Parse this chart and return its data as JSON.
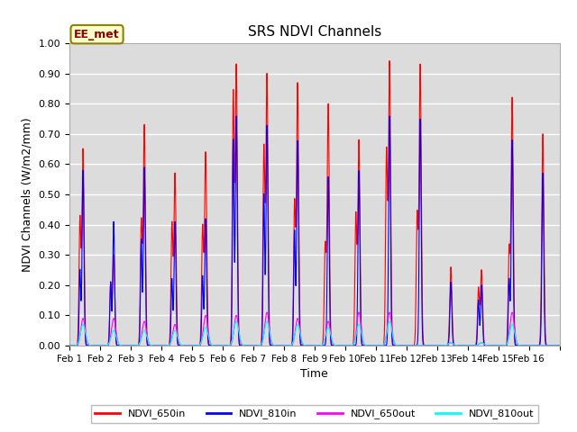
{
  "title": "SRS NDVI Channels",
  "xlabel": "Time",
  "ylabel": "NDVI Channels (W/m2/mm)",
  "annotation": "EE_met",
  "ylim": [
    0.0,
    1.0
  ],
  "yticks": [
    0.0,
    0.1,
    0.2,
    0.3,
    0.4,
    0.5,
    0.6,
    0.7,
    0.8,
    0.9,
    1.0
  ],
  "bg_color": "#dcdcdc",
  "grid_color": "#ffffff",
  "series": {
    "NDVI_650in": {
      "color": "red",
      "lw": 0.8
    },
    "NDVI_810in": {
      "color": "blue",
      "lw": 0.8
    },
    "NDVI_650out": {
      "color": "magenta",
      "lw": 0.8
    },
    "NDVI_810out": {
      "color": "cyan",
      "lw": 0.8
    }
  },
  "day_labels": [
    "Feb 1",
    "Feb 2",
    "Feb 3",
    "Feb 4",
    "Feb 5",
    "Feb 6",
    "Feb 7",
    "Feb 8",
    "Feb 9",
    "Feb 10",
    "Feb 11",
    "Feb 12",
    "Feb 13",
    "Feb 14",
    "Feb 15",
    "Feb 16"
  ],
  "peaks_650in": [
    0.65,
    0.3,
    0.73,
    0.57,
    0.64,
    0.93,
    0.9,
    0.87,
    0.8,
    0.68,
    0.94,
    0.93,
    0.26,
    0.25,
    0.82,
    0.7
  ],
  "peaks2_650in": [
    0.42,
    0.2,
    0.41,
    0.4,
    0.39,
    0.83,
    0.65,
    0.47,
    0.33,
    0.43,
    0.64,
    0.43,
    0.0,
    0.19,
    0.32,
    0.0
  ],
  "peaks_810in": [
    0.58,
    0.41,
    0.59,
    0.41,
    0.42,
    0.76,
    0.73,
    0.68,
    0.56,
    0.58,
    0.76,
    0.75,
    0.21,
    0.2,
    0.68,
    0.57
  ],
  "peaks2_810in": [
    0.25,
    0.21,
    0.35,
    0.22,
    0.23,
    0.68,
    0.5,
    0.38,
    0.0,
    0.0,
    0.0,
    0.0,
    0.0,
    0.15,
    0.22,
    0.0
  ],
  "peaks_650out": [
    0.09,
    0.09,
    0.08,
    0.07,
    0.1,
    0.1,
    0.11,
    0.09,
    0.08,
    0.11,
    0.11,
    0.0,
    0.01,
    0.01,
    0.11,
    0.0
  ],
  "peaks_810out": [
    0.07,
    0.05,
    0.05,
    0.05,
    0.06,
    0.08,
    0.08,
    0.07,
    0.06,
    0.07,
    0.08,
    0.0,
    0.01,
    0.01,
    0.07,
    0.0
  ],
  "figsize": [
    6.4,
    4.8
  ],
  "dpi": 100
}
